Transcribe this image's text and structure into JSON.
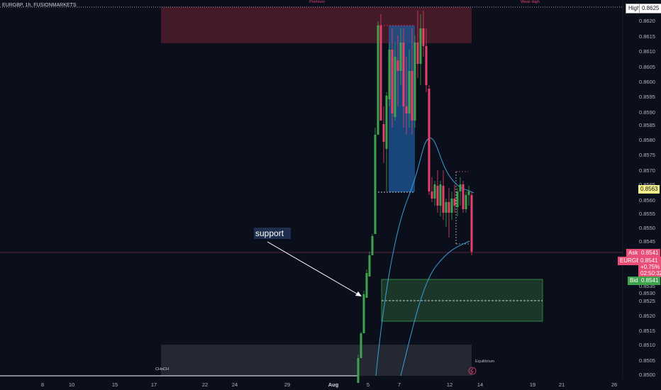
{
  "header": {
    "symbol_title": "EURGBP, 1h, FUSIONMARKETS"
  },
  "annotations": {
    "support": "support",
    "choch": "CHoCH",
    "equilibrium": "Equilibrium",
    "premium": "Premium",
    "weak_high": "Weak High"
  },
  "price_scale": {
    "labels": [
      "0.8620",
      "0.8615",
      "0.8610",
      "0.8605",
      "0.8600",
      "0.8595",
      "0.8590",
      "0.8585",
      "0.8580",
      "0.8575",
      "0.8570",
      "0.8565",
      "0.8560",
      "0.8555",
      "0.8550",
      "0.8545",
      "0.8535",
      "0.8530",
      "0.8525",
      "0.8520",
      "0.8515",
      "0.8510",
      "0.8505",
      "0.8500"
    ],
    "high_label": "High",
    "high_value": "0.8625",
    "current_level": "0.8563",
    "ask_label": "Ask",
    "ask_value": "0.8541",
    "symbol_tag": "EURGBP",
    "last_price": "0.8541",
    "change_pct": "+0.75%",
    "countdown": "02:50:32",
    "bid_label": "Bid",
    "bid_value": "0.8541"
  },
  "time_axis": {
    "labels": [
      "8",
      "10",
      "15",
      "17",
      "22",
      "24",
      "29",
      "Aug",
      "5",
      "7",
      "12",
      "14",
      "19",
      "21",
      "26"
    ]
  },
  "colors": {
    "background": "#0b0f1c",
    "bull": "#3fa34d",
    "bear": "#e6406b",
    "premium_zone": "#4a1c2a",
    "discount_zone": "#1c3a2a",
    "order_block": "#1f5a9a",
    "ma_line": "#3aa0d8",
    "ask_tag": "#e94e77",
    "bid_tag": "#3fa34d"
  }
}
